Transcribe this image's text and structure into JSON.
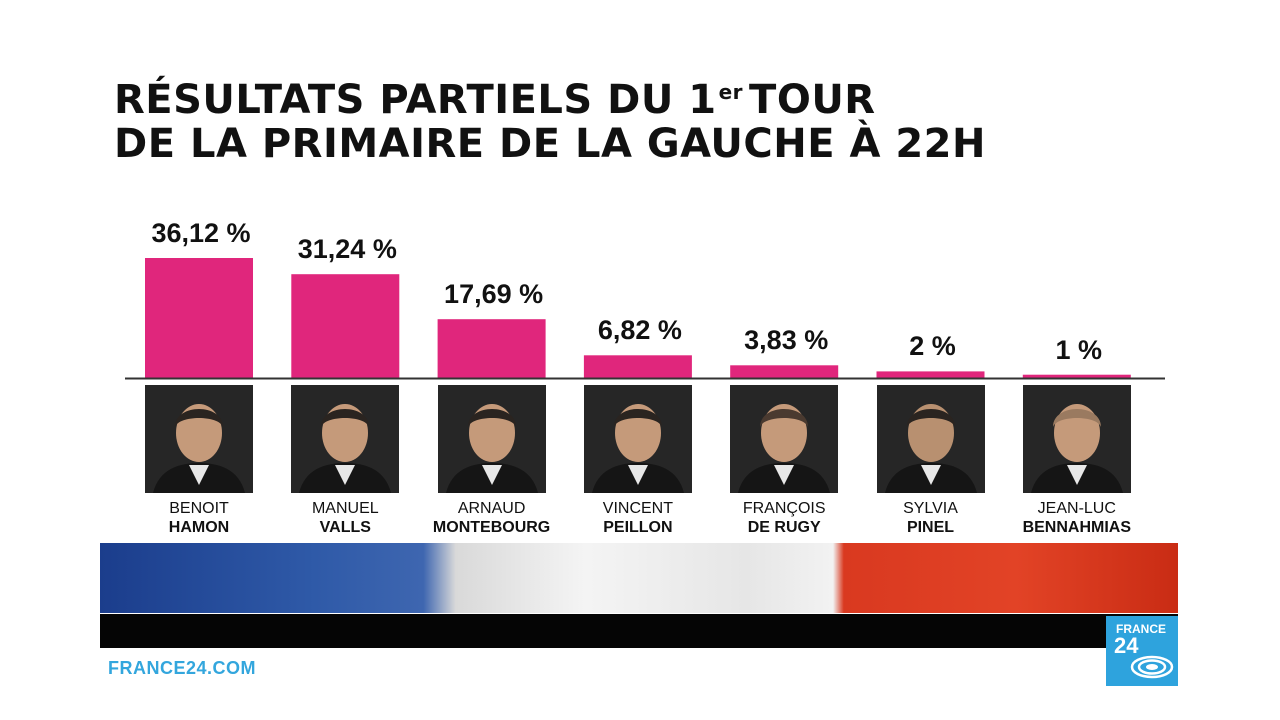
{
  "title": {
    "line1_before": "RÉSULTATS PARTIELS DU 1",
    "line1_sup": "er",
    "line1_after": "TOUR",
    "line2": "DE LA PRIMAIRE DE LA GAUCHE À 22H"
  },
  "chart_data": {
    "type": "bar",
    "title": "RÉSULTATS PARTIELS DU 1er TOUR DE LA PRIMAIRE DE LA GAUCHE À 22H",
    "categories": [
      "BENOIT HAMON",
      "MANUEL VALLS",
      "ARNAUD MONTEBOURG",
      "VINCENT PEILLON",
      "FRANÇOIS DE RUGY",
      "SYLVIA PINEL",
      "JEAN-LUC BENNAHMIAS"
    ],
    "values": [
      36.12,
      31.24,
      17.69,
      6.82,
      3.83,
      2,
      1
    ],
    "value_labels": [
      "36,12 %",
      "31,24 %",
      "17,69 %",
      "6,82 %",
      "3,83 %",
      "2 %",
      "1 %"
    ],
    "ylim": [
      0,
      40
    ],
    "bar_color": "#e0267c",
    "grid": false,
    "legend": "none"
  },
  "candidates": [
    {
      "first": "BENOIT",
      "last": "HAMON",
      "value_label": "36,12 %"
    },
    {
      "first": "MANUEL",
      "last": "VALLS",
      "value_label": "31,24 %"
    },
    {
      "first": "ARNAUD",
      "last": "MONTEBOURG",
      "value_label": "17,69 %"
    },
    {
      "first": "VINCENT",
      "last": "PEILLON",
      "value_label": "6,82 %"
    },
    {
      "first": "FRANÇOIS",
      "last": "DE RUGY",
      "value_label": "3,83 %"
    },
    {
      "first": "SYLVIA",
      "last": "PINEL",
      "value_label": "2 %"
    },
    {
      "first": "JEAN-LUC",
      "last": "BENNAHMIAS",
      "value_label": "1 %"
    }
  ],
  "footer": {
    "site": "FRANCE24.COM",
    "logo_line1": "FRANCE",
    "logo_line2": "24",
    "link_color": "#33a6dd",
    "logo_color": "#2ea3dd"
  },
  "flag_colors": [
    "#1b3d8c",
    "#f4f4f4",
    "#d93920"
  ]
}
